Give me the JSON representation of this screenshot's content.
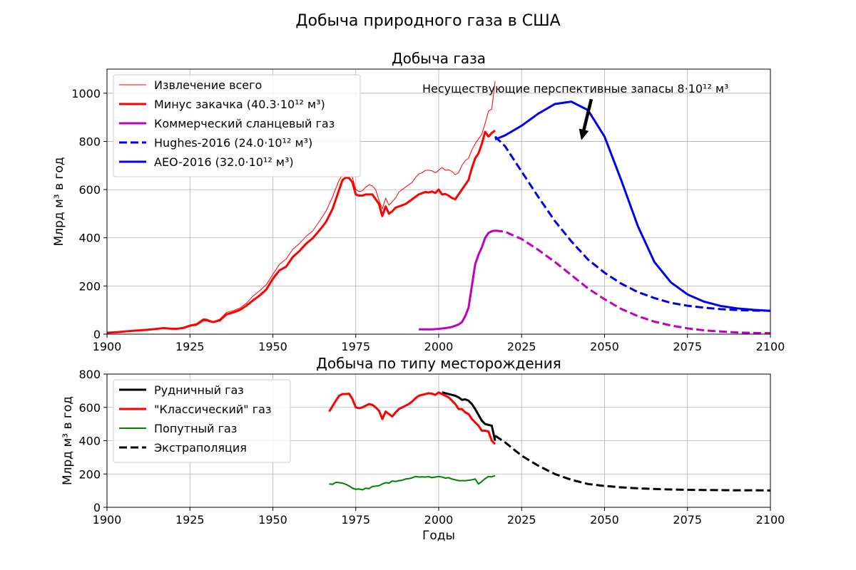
{
  "figure": {
    "suptitle": "Добыча природного газа в США"
  },
  "chart_data": [
    {
      "type": "line",
      "title": "Добыча газа",
      "xlabel": "",
      "ylabel": "Млрд м³ в год",
      "xlim": [
        1900,
        2100
      ],
      "ylim": [
        0,
        1100
      ],
      "xticks": [
        1900,
        1925,
        1950,
        1975,
        2000,
        2025,
        2050,
        2075,
        2100
      ],
      "yticks": [
        0,
        200,
        400,
        600,
        800,
        1000
      ],
      "grid": true,
      "legend_position": "top-left",
      "annotation": {
        "text": "Несуществующие перспективные запасы 8·10¹² м³",
        "arrow_from": [
          2046,
          975
        ],
        "arrow_to": [
          2043,
          805
        ]
      },
      "series": [
        {
          "name": "Извлечение всего",
          "color": "#ff0000",
          "style": "solid",
          "width": 1,
          "x": [
            1900,
            1903,
            1906,
            1909,
            1912,
            1915,
            1917,
            1919,
            1921,
            1923,
            1925,
            1927,
            1929,
            1930,
            1932,
            1934,
            1936,
            1938,
            1940,
            1942,
            1944,
            1946,
            1948,
            1950,
            1952,
            1954,
            1956,
            1958,
            1960,
            1962,
            1964,
            1966,
            1968,
            1970,
            1971,
            1972,
            1973,
            1974,
            1975,
            1976,
            1977,
            1978,
            1979,
            1980,
            1981,
            1982,
            1983,
            1984,
            1985,
            1986,
            1987,
            1988,
            1989,
            1990,
            1991,
            1992,
            1993,
            1994,
            1995,
            1996,
            1997,
            1998,
            1999,
            2000,
            2001,
            2002,
            2003,
            2004,
            2005,
            2006,
            2007,
            2008,
            2009,
            2010,
            2011,
            2012,
            2013,
            2014,
            2015,
            2016,
            2017
          ],
          "y": [
            6,
            9,
            14,
            17,
            20,
            24,
            27,
            25,
            24,
            29,
            38,
            44,
            64,
            63,
            52,
            62,
            90,
            97,
            108,
            128,
            158,
            180,
            205,
            248,
            290,
            312,
            352,
            376,
            406,
            428,
            468,
            510,
            570,
            640,
            660,
            675,
            676,
            650,
            600,
            592,
            595,
            610,
            620,
            615,
            600,
            555,
            520,
            565,
            535,
            550,
            565,
            590,
            600,
            610,
            620,
            630,
            650,
            665,
            670,
            680,
            680,
            678,
            670,
            680,
            692,
            680,
            682,
            675,
            662,
            670,
            700,
            720,
            730,
            765,
            790,
            810,
            830,
            875,
            925,
            935,
            1050
          ]
        },
        {
          "name": "Минус закачка (40.3·10¹² м³)",
          "color": "#ff0000",
          "style": "solid",
          "width": 3,
          "x": [
            1900,
            1903,
            1906,
            1909,
            1912,
            1915,
            1917,
            1919,
            1921,
            1923,
            1925,
            1927,
            1929,
            1930,
            1932,
            1934,
            1936,
            1938,
            1940,
            1942,
            1944,
            1946,
            1948,
            1950,
            1952,
            1954,
            1956,
            1958,
            1960,
            1962,
            1964,
            1966,
            1968,
            1970,
            1971,
            1972,
            1973,
            1974,
            1975,
            1976,
            1977,
            1978,
            1979,
            1980,
            1981,
            1982,
            1983,
            1984,
            1985,
            1986,
            1987,
            1988,
            1989,
            1990,
            1991,
            1992,
            1993,
            1994,
            1995,
            1996,
            1997,
            1998,
            1999,
            2000,
            2001,
            2002,
            2003,
            2004,
            2005,
            2006,
            2007,
            2008,
            2009,
            2010,
            2011,
            2012,
            2013,
            2014,
            2015,
            2016,
            2017
          ],
          "y": [
            6,
            8,
            12,
            15,
            18,
            22,
            25,
            23,
            22,
            26,
            35,
            40,
            58,
            58,
            50,
            57,
            82,
            90,
            100,
            118,
            140,
            160,
            185,
            230,
            265,
            280,
            320,
            345,
            375,
            398,
            430,
            465,
            520,
            600,
            640,
            650,
            648,
            630,
            580,
            575,
            575,
            580,
            580,
            580,
            560,
            540,
            490,
            530,
            500,
            510,
            525,
            530,
            535,
            540,
            550,
            560,
            570,
            580,
            585,
            590,
            588,
            592,
            586,
            600,
            580,
            582,
            575,
            565,
            560,
            580,
            600,
            620,
            640,
            690,
            730,
            750,
            790,
            840,
            820,
            835,
            845
          ]
        },
        {
          "name": "Коммерческий сланцевый газ",
          "color": "#c000c0",
          "style": "solid",
          "width": 3,
          "x": [
            1994,
            1998,
            2000,
            2002,
            2004,
            2005,
            2006,
            2007,
            2008,
            2009,
            2010,
            2011,
            2012,
            2013,
            2014,
            2015,
            2016,
            2017
          ],
          "y": [
            20,
            20,
            22,
            25,
            30,
            35,
            40,
            50,
            75,
            110,
            200,
            290,
            330,
            360,
            400,
            420,
            427,
            430
          ]
        },
        {
          "name": "Hughes-2016 (24.0·10¹² м³)",
          "color": "#0000ee",
          "style": "dashed",
          "width": 3,
          "x": [
            2017,
            2020,
            2025,
            2030,
            2035,
            2040,
            2045,
            2050,
            2055,
            2060,
            2065,
            2070,
            2075,
            2080,
            2085,
            2090,
            2095,
            2100
          ],
          "y": [
            820,
            780,
            675,
            570,
            470,
            385,
            310,
            255,
            210,
            175,
            150,
            130,
            118,
            110,
            104,
            100,
            98,
            97
          ]
        },
        {
          "name": "AEO-2016 (32.0·10¹² м³)",
          "color": "#0000ee",
          "style": "solid",
          "width": 3,
          "x": [
            2017,
            2020,
            2025,
            2030,
            2035,
            2040,
            2045,
            2050,
            2055,
            2060,
            2065,
            2070,
            2075,
            2080,
            2085,
            2090,
            2095,
            2100
          ],
          "y": [
            808,
            825,
            865,
            915,
            955,
            965,
            930,
            820,
            640,
            450,
            300,
            215,
            165,
            135,
            117,
            107,
            101,
            97
          ]
        },
        {
          "name": "",
          "color": "#c000c0",
          "style": "dashed",
          "width": 3,
          "x": [
            2017,
            2020,
            2025,
            2030,
            2035,
            2040,
            2045,
            2050,
            2055,
            2060,
            2065,
            2070,
            2075,
            2080,
            2085,
            2090,
            2095,
            2100
          ],
          "y": [
            430,
            425,
            395,
            350,
            300,
            245,
            190,
            145,
            105,
            75,
            52,
            36,
            24,
            16,
            11,
            7,
            5,
            4
          ]
        }
      ]
    },
    {
      "type": "line",
      "title": "Добыча по типу месторождения",
      "xlabel": "Годы",
      "ylabel": "Млрд м³ в год",
      "xlim": [
        1900,
        2100
      ],
      "ylim": [
        0,
        800
      ],
      "xticks": [
        1900,
        1925,
        1950,
        1975,
        2000,
        2025,
        2050,
        2075,
        2100
      ],
      "yticks": [
        0,
        200,
        400,
        600,
        800
      ],
      "grid": true,
      "legend_position": "top-left",
      "series": [
        {
          "name": "Рудничный газ",
          "color": "#000000",
          "style": "solid",
          "width": 3,
          "x": [
            2001,
            2003,
            2005,
            2006,
            2007,
            2008,
            2009,
            2010,
            2011,
            2012,
            2013,
            2014,
            2015,
            2016,
            2017
          ],
          "y": [
            690,
            680,
            670,
            660,
            645,
            648,
            640,
            620,
            590,
            555,
            520,
            500,
            495,
            490,
            400
          ],
          "draw_order": 0
        },
        {
          "name": "\"Классический\" газ",
          "color": "#ff0000",
          "style": "solid",
          "width": 3,
          "x": [
            1967,
            1969,
            1970,
            1971,
            1972,
            1973,
            1974,
            1975,
            1976,
            1977,
            1978,
            1979,
            1980,
            1981,
            1982,
            1983,
            1984,
            1985,
            1986,
            1987,
            1988,
            1989,
            1990,
            1991,
            1992,
            1993,
            1994,
            1995,
            1996,
            1997,
            1998,
            1999,
            2000,
            2001,
            2002,
            2003,
            2004,
            2005,
            2006,
            2007,
            2008,
            2009,
            2010,
            2011,
            2012,
            2013,
            2014,
            2015,
            2016,
            2017
          ],
          "y": [
            575,
            640,
            670,
            680,
            680,
            682,
            650,
            600,
            595,
            600,
            610,
            620,
            615,
            600,
            580,
            530,
            575,
            560,
            545,
            570,
            590,
            600,
            610,
            620,
            635,
            655,
            670,
            675,
            680,
            685,
            682,
            675,
            690,
            680,
            670,
            660,
            640,
            620,
            590,
            590,
            570,
            560,
            530,
            510,
            490,
            460,
            460,
            455,
            400,
            380
          ],
          "draw_order": 1
        },
        {
          "name": "Попутный газ",
          "color": "#008000",
          "style": "solid",
          "width": 2,
          "x": [
            1967,
            1968,
            1969,
            1970,
            1971,
            1972,
            1973,
            1974,
            1975,
            1976,
            1977,
            1978,
            1979,
            1980,
            1981,
            1982,
            1983,
            1984,
            1985,
            1986,
            1987,
            1988,
            1989,
            1990,
            1991,
            1992,
            1993,
            1994,
            1995,
            1996,
            1997,
            1998,
            1999,
            2000,
            2001,
            2002,
            2003,
            2004,
            2005,
            2006,
            2007,
            2008,
            2009,
            2010,
            2011,
            2012,
            2013,
            2014,
            2015,
            2016,
            2017
          ],
          "y": [
            140,
            138,
            150,
            148,
            145,
            138,
            128,
            115,
            108,
            110,
            105,
            115,
            112,
            125,
            127,
            130,
            140,
            148,
            145,
            158,
            155,
            160,
            162,
            170,
            172,
            177,
            185,
            182,
            183,
            182,
            184,
            178,
            182,
            185,
            182,
            175,
            178,
            170,
            165,
            160,
            160,
            160,
            162,
            165,
            170,
            140,
            155,
            172,
            185,
            183,
            190
          ],
          "draw_order": 2
        },
        {
          "name": "Экстраполяция",
          "color": "#000000",
          "style": "dashed",
          "width": 3,
          "x": [
            2017,
            2020,
            2025,
            2030,
            2035,
            2040,
            2045,
            2050,
            2055,
            2060,
            2065,
            2070,
            2075,
            2080,
            2085,
            2090,
            2095,
            2100
          ],
          "y": [
            430,
            390,
            310,
            250,
            200,
            165,
            140,
            128,
            120,
            114,
            110,
            107,
            105,
            104,
            103,
            102,
            102,
            101
          ],
          "draw_order": 3
        }
      ]
    }
  ]
}
